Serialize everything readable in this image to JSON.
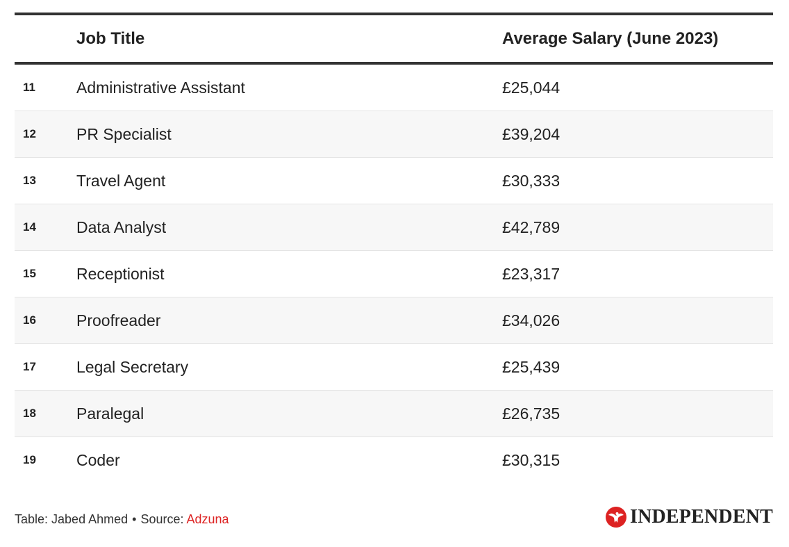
{
  "chart_data": {
    "type": "table",
    "columns": [
      "",
      "Job Title",
      "Average Salary (June 2023)"
    ],
    "rows": [
      {
        "rank": "11",
        "job": "Administrative Assistant",
        "salary": "£25,044"
      },
      {
        "rank": "12",
        "job": "PR Specialist",
        "salary": "£39,204"
      },
      {
        "rank": "13",
        "job": "Travel Agent",
        "salary": "£30,333"
      },
      {
        "rank": "14",
        "job": "Data Analyst",
        "salary": "£42,789"
      },
      {
        "rank": "15",
        "job": "Receptionist",
        "salary": "£23,317"
      },
      {
        "rank": "16",
        "job": "Proofreader",
        "salary": "£34,026"
      },
      {
        "rank": "17",
        "job": "Legal Secretary",
        "salary": "£25,439"
      },
      {
        "rank": "18",
        "job": "Paralegal",
        "salary": "£26,735"
      },
      {
        "rank": "19",
        "job": "Coder",
        "salary": "£30,315"
      }
    ]
  },
  "footer": {
    "credit": "Table: Jabed Ahmed",
    "separator": "•",
    "source_label": "Source:",
    "source_link": "Adzuna"
  },
  "brand": {
    "name": "INDEPENDENT",
    "icon": "eagle-icon",
    "accent": "#dd2222"
  }
}
